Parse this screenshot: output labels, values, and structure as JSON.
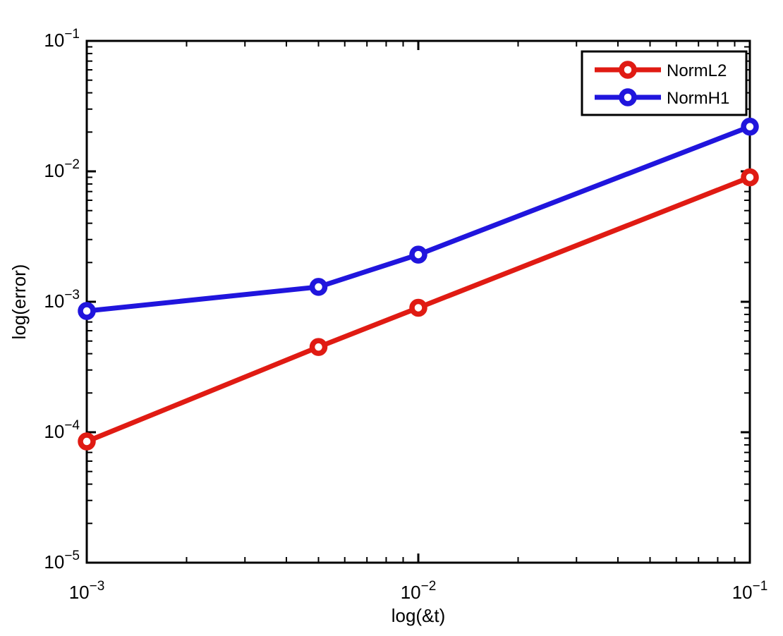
{
  "chart_data": {
    "type": "line",
    "title": "",
    "xlabel": "log(&t)",
    "ylabel": "log(error)",
    "xscale": "log",
    "yscale": "log",
    "xlim": [
      0.001,
      0.1
    ],
    "ylim": [
      1e-05,
      0.1
    ],
    "grid": false,
    "background": "#ffffff",
    "axis_color": "#000000",
    "x": [
      0.001,
      0.005,
      0.01,
      0.1
    ],
    "series": [
      {
        "name": "NormL2",
        "color": "#e01b13",
        "marker": "circle",
        "values": [
          8.5e-05,
          0.00045,
          0.0009,
          0.009
        ]
      },
      {
        "name": "NormH1",
        "color": "#2015dd",
        "marker": "circle",
        "values": [
          0.00085,
          0.0013,
          0.0023,
          0.022
        ]
      }
    ],
    "x_tick_labels": [
      "10^-3",
      "10^-2",
      "10^-1"
    ],
    "y_tick_labels": [
      "10^-1",
      "10^-2",
      "10^-3",
      "10^-4",
      "10^-5"
    ],
    "legend": {
      "position": "top-right",
      "entries": [
        "NormL2",
        "NormH1"
      ]
    }
  }
}
